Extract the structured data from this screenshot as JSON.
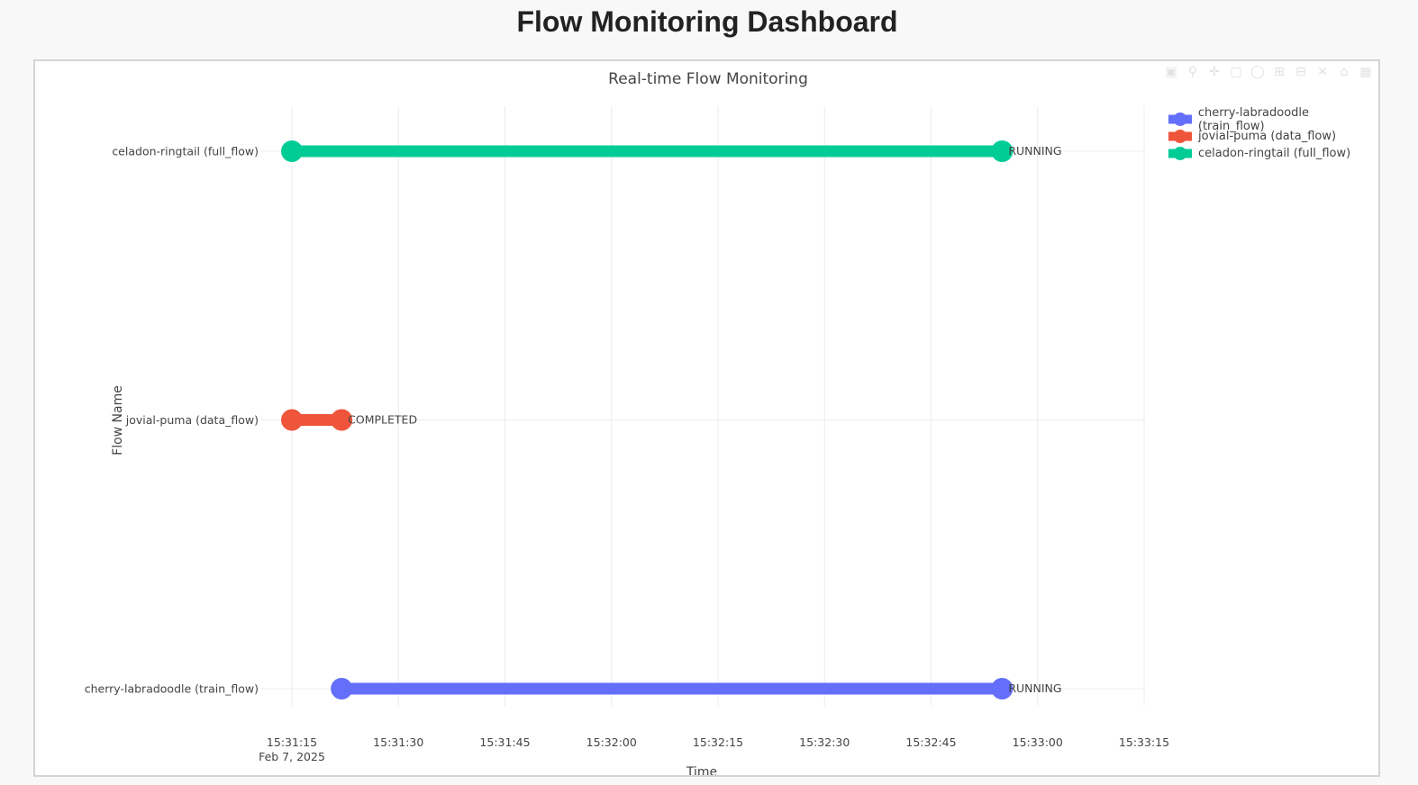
{
  "page": {
    "title": "Flow Monitoring Dashboard"
  },
  "toolbar": {
    "icons": [
      "camera-icon",
      "zoom-icon",
      "pan-icon",
      "box-select-icon",
      "lasso-icon",
      "zoom-in-icon",
      "zoom-out-icon",
      "autoscale-icon",
      "reset-axes-icon",
      "plotly-logo-icon"
    ]
  },
  "chart_data": {
    "type": "timeline",
    "title": "Real-time Flow Monitoring",
    "xlabel": "Time",
    "ylabel": "Flow Name",
    "x_ticks": [
      "15:31:15",
      "15:31:30",
      "15:31:45",
      "15:32:00",
      "15:32:15",
      "15:32:30",
      "15:32:45",
      "15:33:00",
      "15:33:15"
    ],
    "x_date_label": "Feb 7, 2025",
    "x_range": [
      "15:31:15",
      "15:33:15"
    ],
    "categories": [
      "cherry-labradoodle (train_flow)",
      "jovial-puma (data_flow)",
      "celadon-ringtail (full_flow)"
    ],
    "grid": true,
    "legend_position": "top-right",
    "series": [
      {
        "name": "cherry-labradoodle (train_flow)",
        "category": "cherry-labradoodle (train_flow)",
        "start": "15:31:22",
        "end": "15:32:55",
        "status": "RUNNING",
        "color": "#636efa"
      },
      {
        "name": "jovial-puma (data_flow)",
        "category": "jovial-puma (data_flow)",
        "start": "15:31:15",
        "end": "15:31:22",
        "status": "COMPLETED",
        "color": "#ef553b"
      },
      {
        "name": "celadon-ringtail (full_flow)",
        "category": "celadon-ringtail (full_flow)",
        "start": "15:31:15",
        "end": "15:32:55",
        "status": "RUNNING",
        "color": "#00cc96"
      }
    ]
  }
}
